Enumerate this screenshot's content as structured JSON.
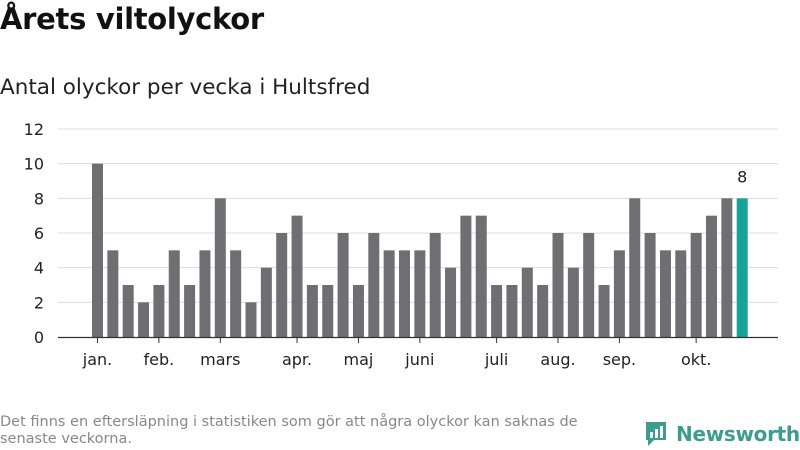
{
  "header": {
    "title": "Årets viltolyckor",
    "subtitle": "Antal olyckor per vecka i Hultsfred"
  },
  "footer": {
    "note": "Det finns en eftersläpning i statistiken som gör att några olyckor kan saknas de senaste veckorna.",
    "brand": "Newsworthy"
  },
  "colors": {
    "bar": "#6f6e73",
    "highlight": "#17a398",
    "grid": "#dddddd",
    "axis": "#333333",
    "brand": "#3c9c8f"
  },
  "chart_data": {
    "type": "bar",
    "title": "Antal olyckor per vecka i Hultsfred",
    "xlabel": "",
    "ylabel": "",
    "ylim": [
      0,
      12
    ],
    "yticks": [
      0,
      2,
      4,
      6,
      8,
      10,
      12
    ],
    "grid": true,
    "weeks": [
      1,
      2,
      3,
      4,
      5,
      6,
      7,
      8,
      9,
      10,
      11,
      12,
      13,
      14,
      15,
      16,
      17,
      18,
      19,
      20,
      21,
      22,
      23,
      24,
      25,
      26,
      27,
      28,
      29,
      30,
      31,
      32,
      33,
      34,
      35,
      36,
      37,
      38,
      39,
      40,
      41,
      42,
      43
    ],
    "values": [
      10,
      5,
      3,
      2,
      3,
      5,
      3,
      5,
      8,
      5,
      2,
      4,
      6,
      7,
      3,
      3,
      6,
      3,
      6,
      5,
      5,
      5,
      6,
      4,
      7,
      7,
      3,
      3,
      4,
      3,
      6,
      4,
      6,
      3,
      5,
      8,
      6,
      5,
      5,
      6,
      7,
      8,
      8
    ],
    "month_labels": [
      {
        "label": "jan.",
        "week": 1
      },
      {
        "label": "feb.",
        "week": 5
      },
      {
        "label": "mars",
        "week": 9
      },
      {
        "label": "apr.",
        "week": 14
      },
      {
        "label": "maj",
        "week": 18
      },
      {
        "label": "juni",
        "week": 22
      },
      {
        "label": "juli",
        "week": 27
      },
      {
        "label": "aug.",
        "week": 31
      },
      {
        "label": "sep.",
        "week": 35
      },
      {
        "label": "okt.",
        "week": 40
      }
    ],
    "highlight_week": 43,
    "highlight_label": "8"
  }
}
